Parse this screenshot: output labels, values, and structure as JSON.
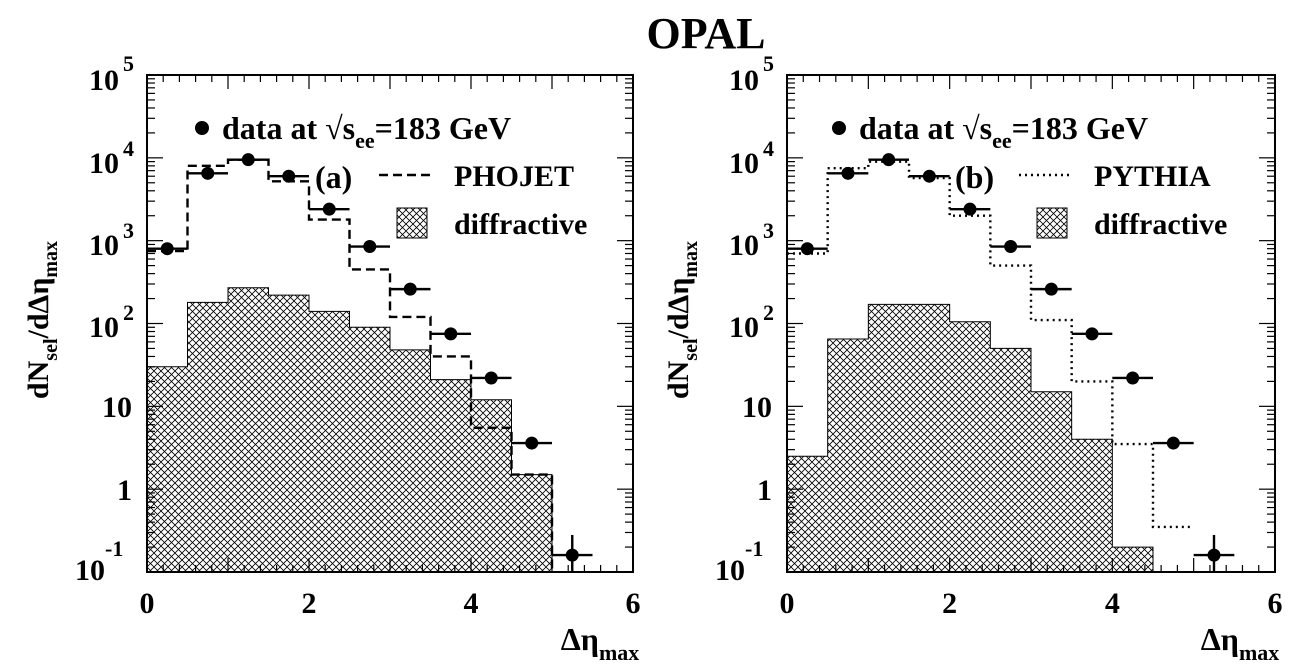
{
  "figure": {
    "title": "OPAL",
    "ylabel": {
      "main": "dN",
      "sub1": "sel",
      "mid": "/dΔη",
      "sub2": "max"
    },
    "xlabel": {
      "main": "Δη",
      "sub": "max"
    },
    "xtick_labels": [
      "0",
      "2",
      "4",
      "6"
    ],
    "ytick_labels": [
      {
        "base": "10",
        "exp": "-1"
      },
      {
        "base": "1",
        "exp": ""
      },
      {
        "base": "10",
        "exp": ""
      },
      {
        "base": "10",
        "exp": "2"
      },
      {
        "base": "10",
        "exp": "3"
      },
      {
        "base": "10",
        "exp": "4"
      },
      {
        "base": "10",
        "exp": "5"
      }
    ],
    "legend_data": {
      "prefix": "data at √s",
      "sub": "ee",
      "suffix": "=183 GeV"
    },
    "legend_diffractive": "diffractive"
  },
  "chart_data": [
    {
      "type": "histogram",
      "panel_label": "(a)",
      "x_range": [
        0,
        6
      ],
      "y_range": [
        0.1,
        100000
      ],
      "y_scale": "log",
      "bin_edges": [
        0,
        0.5,
        1,
        1.5,
        2,
        2.5,
        3,
        3.5,
        4,
        4.5,
        5,
        5.5
      ],
      "data": {
        "name": "data at √s_ee=183 GeV",
        "x": [
          0.25,
          0.75,
          1.25,
          1.75,
          2.25,
          2.75,
          3.25,
          3.75,
          4.25,
          4.75,
          5.25
        ],
        "y": [
          800,
          6500,
          9500,
          6000,
          2400,
          850,
          260,
          75,
          22,
          3.6,
          0.16
        ],
        "yerr": [
          0,
          0,
          0,
          0,
          0,
          0,
          0,
          0,
          0,
          0.5,
          0.12
        ]
      },
      "mc": {
        "name": "PHOJET",
        "style": "dashed",
        "values": [
          750,
          8000,
          9500,
          5200,
          1800,
          450,
          120,
          40,
          5.5,
          1.5,
          0.09
        ]
      },
      "diffractive": {
        "name": "diffractive",
        "values": [
          30,
          180,
          270,
          220,
          140,
          90,
          48,
          21,
          12,
          1.5,
          0
        ]
      }
    },
    {
      "type": "histogram",
      "panel_label": "(b)",
      "x_range": [
        0,
        6
      ],
      "y_range": [
        0.1,
        100000
      ],
      "y_scale": "log",
      "bin_edges": [
        0,
        0.5,
        1,
        1.5,
        2,
        2.5,
        3,
        3.5,
        4,
        4.5,
        5,
        5.5
      ],
      "data": {
        "name": "data at √s_ee=183 GeV",
        "x": [
          0.25,
          0.75,
          1.25,
          1.75,
          2.25,
          2.75,
          3.25,
          3.75,
          4.25,
          4.75,
          5.25
        ],
        "y": [
          800,
          6500,
          9500,
          6000,
          2400,
          850,
          260,
          75,
          22,
          3.6,
          0.16
        ],
        "yerr": [
          0,
          0,
          0,
          0,
          0,
          0,
          0,
          0,
          0,
          0.5,
          0.12
        ]
      },
      "mc": {
        "name": "PYTHIA",
        "style": "dotted",
        "values": [
          700,
          7500,
          9000,
          5700,
          2000,
          500,
          110,
          20,
          3.5,
          0.35,
          0
        ]
      },
      "diffractive": {
        "name": "diffractive",
        "values": [
          2.5,
          65,
          170,
          170,
          105,
          50,
          15,
          4,
          0.2,
          0,
          0
        ]
      }
    }
  ]
}
